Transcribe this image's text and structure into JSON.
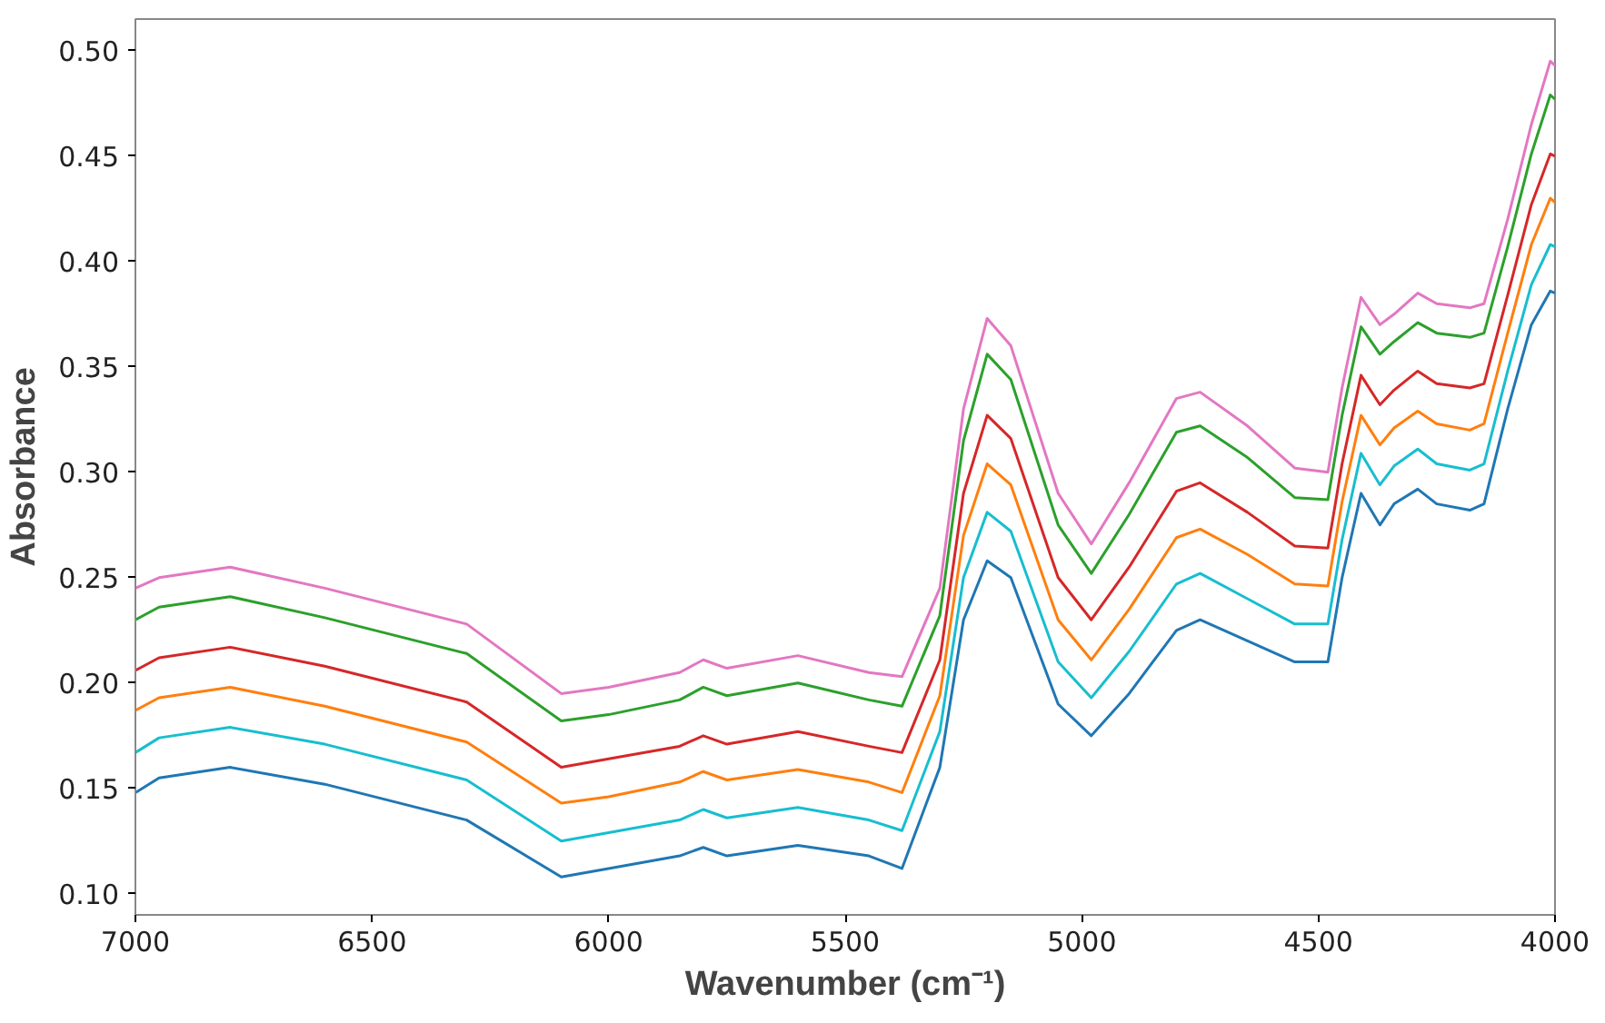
{
  "chart_data": {
    "type": "line",
    "xlabel": "Wavenumber (cm⁻¹)",
    "ylabel": "Absorbance",
    "x": [
      7000,
      6950,
      6800,
      6600,
      6300,
      6100,
      6000,
      5850,
      5800,
      5750,
      5600,
      5450,
      5380,
      5300,
      5250,
      5200,
      5150,
      5050,
      4980,
      4900,
      4800,
      4750,
      4650,
      4550,
      4480,
      4450,
      4410,
      4370,
      4340,
      4290,
      4250,
      4180,
      4150,
      4100,
      4050,
      4010,
      4000
    ],
    "series": [
      {
        "color": "#e377c2",
        "values": [
          0.245,
          0.25,
          0.255,
          0.245,
          0.228,
          0.195,
          0.198,
          0.205,
          0.211,
          0.207,
          0.213,
          0.205,
          0.203,
          0.245,
          0.33,
          0.373,
          0.36,
          0.29,
          0.266,
          0.295,
          0.335,
          0.338,
          0.322,
          0.302,
          0.3,
          0.34,
          0.383,
          0.37,
          0.375,
          0.385,
          0.38,
          0.378,
          0.38,
          0.42,
          0.465,
          0.495,
          0.493
        ]
      },
      {
        "color": "#2ca02c",
        "values": [
          0.23,
          0.236,
          0.241,
          0.231,
          0.214,
          0.182,
          0.185,
          0.192,
          0.198,
          0.194,
          0.2,
          0.192,
          0.189,
          0.232,
          0.315,
          0.356,
          0.344,
          0.275,
          0.252,
          0.28,
          0.319,
          0.322,
          0.307,
          0.288,
          0.287,
          0.327,
          0.369,
          0.356,
          0.362,
          0.371,
          0.366,
          0.364,
          0.366,
          0.407,
          0.451,
          0.479,
          0.477
        ]
      },
      {
        "color": "#d62728",
        "values": [
          0.206,
          0.212,
          0.217,
          0.208,
          0.191,
          0.16,
          0.164,
          0.17,
          0.175,
          0.171,
          0.177,
          0.17,
          0.167,
          0.211,
          0.29,
          0.327,
          0.316,
          0.25,
          0.23,
          0.255,
          0.291,
          0.295,
          0.281,
          0.265,
          0.264,
          0.304,
          0.346,
          0.332,
          0.339,
          0.348,
          0.342,
          0.34,
          0.342,
          0.384,
          0.427,
          0.451,
          0.45
        ]
      },
      {
        "color": "#ff7f0e",
        "values": [
          0.187,
          0.193,
          0.198,
          0.189,
          0.172,
          0.143,
          0.146,
          0.153,
          0.158,
          0.154,
          0.159,
          0.153,
          0.148,
          0.194,
          0.27,
          0.304,
          0.294,
          0.23,
          0.211,
          0.235,
          0.269,
          0.273,
          0.261,
          0.247,
          0.246,
          0.286,
          0.327,
          0.313,
          0.321,
          0.329,
          0.323,
          0.32,
          0.323,
          0.366,
          0.408,
          0.43,
          0.428
        ]
      },
      {
        "color": "#17becf",
        "values": [
          0.167,
          0.174,
          0.179,
          0.171,
          0.154,
          0.125,
          0.129,
          0.135,
          0.14,
          0.136,
          0.141,
          0.135,
          0.13,
          0.177,
          0.25,
          0.281,
          0.272,
          0.21,
          0.193,
          0.215,
          0.247,
          0.252,
          0.24,
          0.228,
          0.228,
          0.268,
          0.309,
          0.294,
          0.303,
          0.311,
          0.304,
          0.301,
          0.304,
          0.348,
          0.389,
          0.408,
          0.407
        ]
      },
      {
        "color": "#1f77b4",
        "values": [
          0.148,
          0.155,
          0.16,
          0.152,
          0.135,
          0.108,
          0.112,
          0.118,
          0.122,
          0.118,
          0.123,
          0.118,
          0.112,
          0.16,
          0.23,
          0.258,
          0.25,
          0.19,
          0.175,
          0.195,
          0.225,
          0.23,
          0.22,
          0.21,
          0.21,
          0.25,
          0.29,
          0.275,
          0.285,
          0.292,
          0.285,
          0.282,
          0.285,
          0.33,
          0.37,
          0.386,
          0.385
        ]
      }
    ],
    "xlim": [
      7000,
      4000
    ],
    "ylim": [
      0.09,
      0.515
    ],
    "xticks": [
      7000,
      6500,
      6000,
      5500,
      5000,
      4500,
      4000
    ],
    "yticks": [
      {
        "value": 0.1,
        "label": "0.10"
      },
      {
        "value": 0.15,
        "label": "0.15"
      },
      {
        "value": 0.2,
        "label": "0.20"
      },
      {
        "value": 0.25,
        "label": "0.25"
      },
      {
        "value": 0.3,
        "label": "0.30"
      },
      {
        "value": 0.35,
        "label": "0.35"
      },
      {
        "value": 0.4,
        "label": "0.40"
      },
      {
        "value": 0.45,
        "label": "0.45"
      },
      {
        "value": 0.5,
        "label": "0.50"
      }
    ],
    "grid": false
  }
}
